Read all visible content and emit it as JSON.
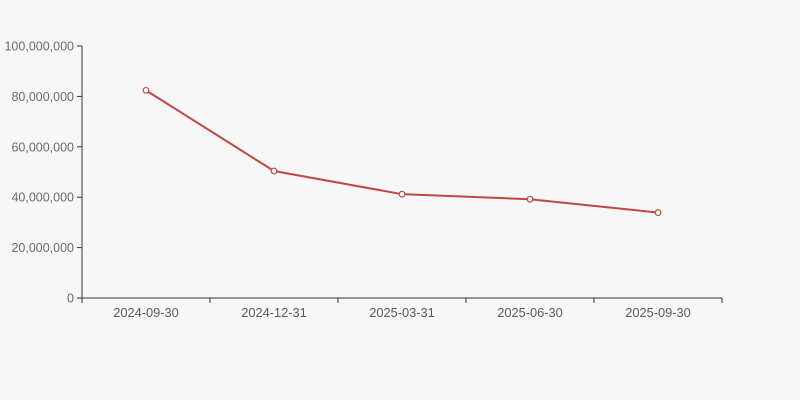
{
  "page": {
    "background": "#f7f7f7"
  },
  "chart_data": {
    "type": "line",
    "title": "",
    "xlabel": "",
    "ylabel": "",
    "categories": [
      "2024-09-30",
      "2024-12-31",
      "2025-03-31",
      "2025-06-30",
      "2025-09-30"
    ],
    "values": [
      82400000,
      50400000,
      41200000,
      39200000,
      33900000
    ],
    "ylim": [
      0,
      100000000
    ],
    "ytick_step": 20000000,
    "yticklabels": [
      "0",
      "20,000,000",
      "40,000,000",
      "60,000,000",
      "80,000,000",
      "100,000,000"
    ],
    "grid": false,
    "legend": "none",
    "line_color": "#c14743",
    "marker_style": "hollow-circle",
    "marker_fill": "#ffffff",
    "axis_color": "#333333",
    "label_color": "#6b6b6b"
  }
}
